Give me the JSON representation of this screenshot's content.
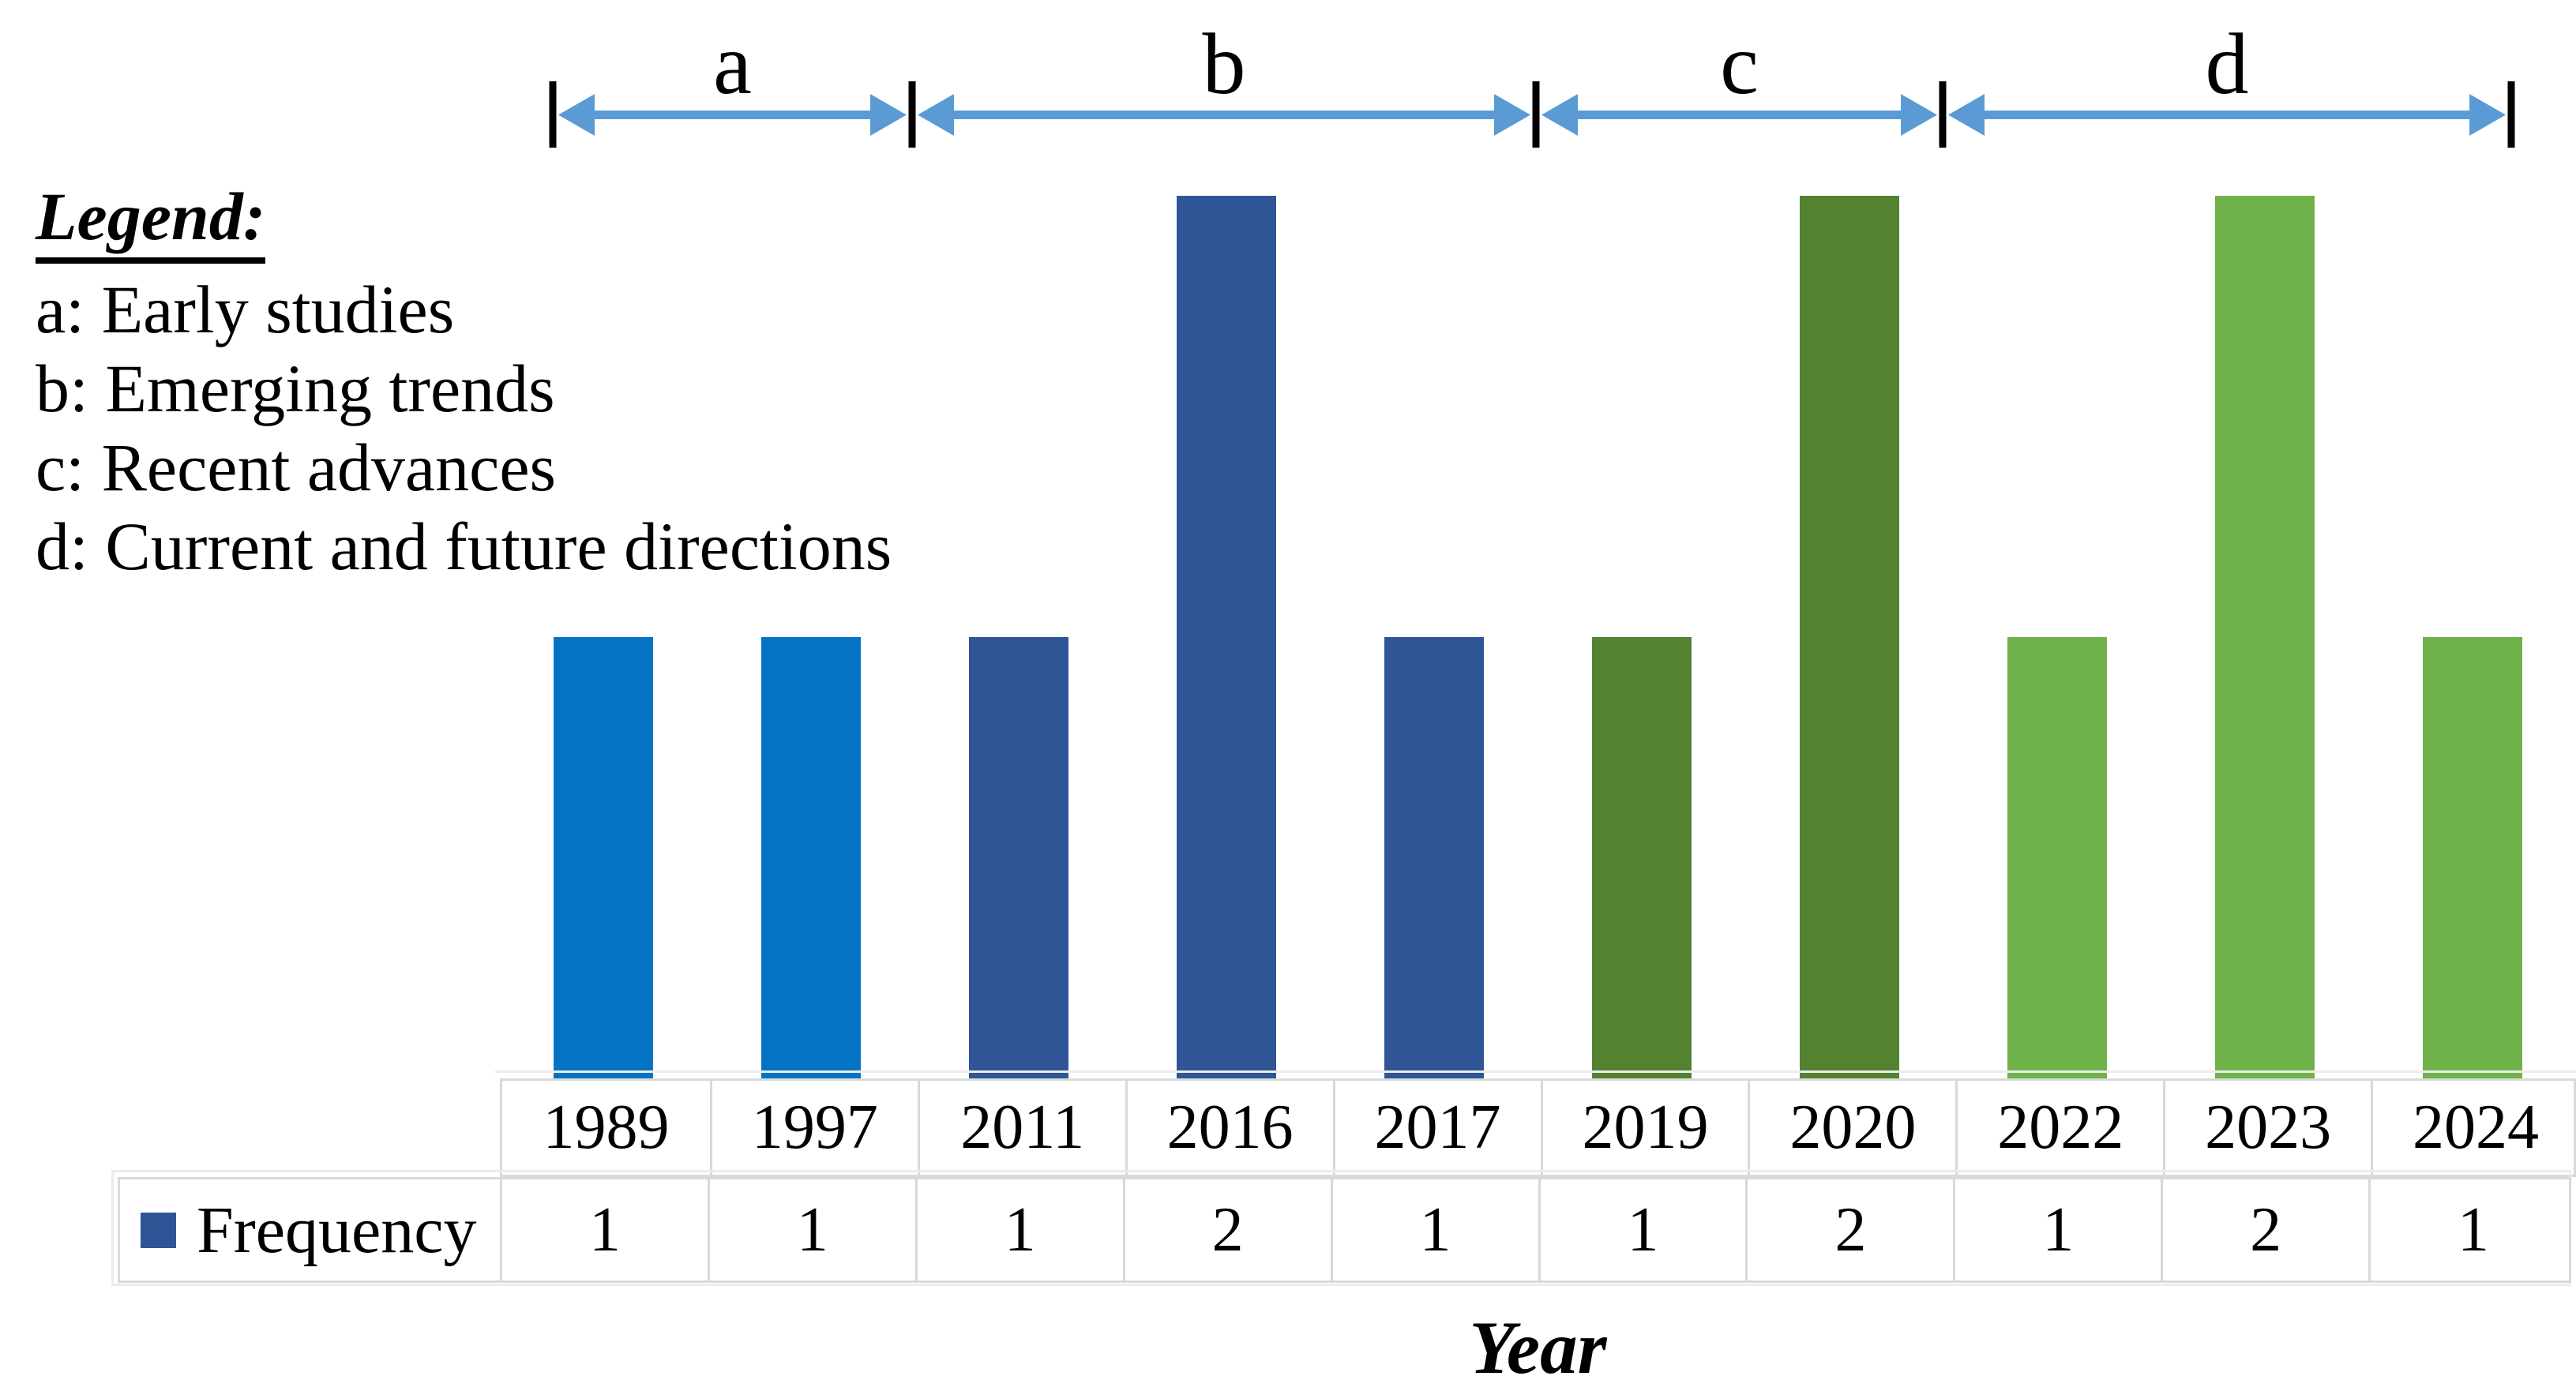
{
  "legend": {
    "title": "Legend:",
    "items": [
      "a: Early studies",
      "b: Emerging trends",
      "c: Recent advances",
      "d: Current and future directions"
    ]
  },
  "axis": {
    "x_label": "Year"
  },
  "table": {
    "series_label": "Frequency"
  },
  "colors": {
    "arrow": "#5B9BD5",
    "tick": "#000000",
    "table_border": "#D9D9D9",
    "table_border_outer": "#ECECEC",
    "legend_key": "#2F5597",
    "bar_bright_blue": "#0473C4",
    "bar_navy": "#2F5597",
    "bar_dark_green": "#538230",
    "bar_light_green": "#6FB24A"
  },
  "chart_data": {
    "type": "bar",
    "title": "",
    "categories": [
      "1989",
      "1997",
      "2011",
      "2016",
      "2017",
      "2019",
      "2020",
      "2022",
      "2023",
      "2024"
    ],
    "series": [
      {
        "name": "Frequency",
        "values": [
          1,
          1,
          1,
          2,
          1,
          1,
          2,
          1,
          2,
          1
        ]
      }
    ],
    "xlabel": "Year",
    "ylabel": "",
    "ylim": [
      0,
      2
    ],
    "grid": false,
    "legend_position": "bottom-table-row",
    "period_groups": [
      {
        "label": "a",
        "description": "Early studies",
        "categories": [
          "1989",
          "1997"
        ],
        "color": "#0473C4"
      },
      {
        "label": "b",
        "description": "Emerging trends",
        "categories": [
          "2011",
          "2016",
          "2017"
        ],
        "color": "#2F5597"
      },
      {
        "label": "c",
        "description": "Recent advances",
        "categories": [
          "2019",
          "2020"
        ],
        "color": "#538230"
      },
      {
        "label": "d",
        "description": "Current and future directions",
        "categories": [
          "2022",
          "2023",
          "2024"
        ],
        "color": "#6FB24A"
      }
    ]
  }
}
